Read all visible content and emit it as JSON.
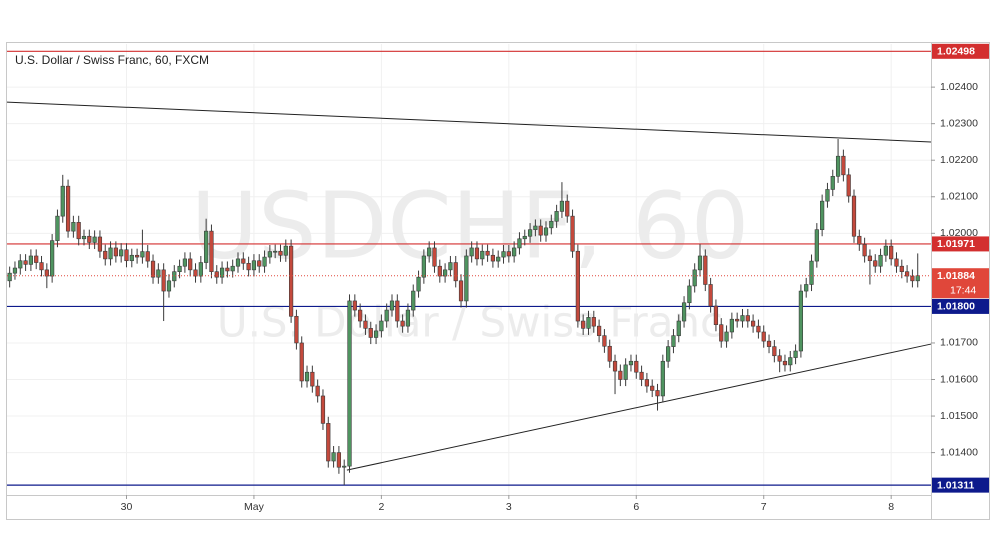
{
  "chart_data": {
    "type": "candlestick",
    "title": "U.S. Dollar / Swiss Franc, 60, FXCM",
    "watermark": "USDCHF, 60",
    "watermark_subtitle": "U.S. Dollar / Swiss Franc",
    "up_color": "#4f9460",
    "down_color": "#c4493c",
    "wick_color": "#3a3a3a",
    "grid": true,
    "xlim": [
      -0.5,
      173.5
    ],
    "ylim": [
      1.01284,
      1.02518
    ],
    "xticks": [
      {
        "value": 22,
        "label": "30"
      },
      {
        "value": 46,
        "label": "May"
      },
      {
        "value": 70,
        "label": "2"
      },
      {
        "value": 94,
        "label": "3"
      },
      {
        "value": 118,
        "label": "6"
      },
      {
        "value": 142,
        "label": "7"
      },
      {
        "value": 166,
        "label": "8"
      }
    ],
    "yticks": [
      {
        "value": 1.024,
        "label": "1.02400"
      },
      {
        "value": 1.023,
        "label": "1.02300"
      },
      {
        "value": 1.022,
        "label": "1.02200"
      },
      {
        "value": 1.021,
        "label": "1.02100"
      },
      {
        "value": 1.02,
        "label": "1.02000"
      },
      {
        "value": 1.017,
        "label": "1.01700"
      },
      {
        "value": 1.016,
        "label": "1.01600"
      },
      {
        "value": 1.015,
        "label": "1.01500"
      },
      {
        "value": 1.014,
        "label": "1.01400"
      }
    ],
    "levels": [
      {
        "value": 1.02498,
        "label": "1.02498",
        "color": "#d32f2f"
      },
      {
        "value": 1.01971,
        "label": "1.01971",
        "color": "#d32f2f"
      },
      {
        "value": 1.018,
        "label": "1.01800",
        "color": "#0d1a8c"
      },
      {
        "value": 1.01311,
        "label": "1.01311",
        "color": "#0d1a8c"
      }
    ],
    "last": {
      "value": 1.01884,
      "label": "1.01884",
      "countdown": "17:44",
      "color": "#e0473a"
    },
    "trendlines": [
      {
        "x": [
          -0.5,
          173.5
        ],
        "y": [
          1.02359,
          1.0225
        ],
        "color": "#222222"
      },
      {
        "x": [
          63.5,
          173.5
        ],
        "y": [
          1.01352,
          1.01697
        ],
        "color": "#222222"
      }
    ],
    "x": [
      0,
      1,
      2,
      3,
      4,
      5,
      6,
      7,
      8,
      9,
      10,
      11,
      12,
      13,
      14,
      15,
      16,
      17,
      18,
      19,
      20,
      21,
      22,
      23,
      24,
      25,
      26,
      27,
      28,
      29,
      30,
      31,
      32,
      33,
      34,
      35,
      36,
      37,
      38,
      39,
      40,
      41,
      42,
      43,
      44,
      45,
      46,
      47,
      48,
      49,
      50,
      51,
      52,
      53,
      54,
      55,
      56,
      57,
      58,
      59,
      60,
      61,
      62,
      63,
      64,
      65,
      66,
      67,
      68,
      69,
      70,
      71,
      72,
      73,
      74,
      75,
      76,
      77,
      78,
      79,
      80,
      81,
      82,
      83,
      84,
      85,
      86,
      87,
      88,
      89,
      90,
      91,
      92,
      93,
      94,
      95,
      96,
      97,
      98,
      99,
      100,
      101,
      102,
      103,
      104,
      105,
      106,
      107,
      108,
      109,
      110,
      111,
      112,
      113,
      114,
      115,
      116,
      117,
      118,
      119,
      120,
      121,
      122,
      123,
      124,
      125,
      126,
      127,
      128,
      129,
      130,
      131,
      132,
      133,
      134,
      135,
      136,
      137,
      138,
      139,
      140,
      141,
      142,
      143,
      144,
      145,
      146,
      147,
      148,
      149,
      150,
      151,
      152,
      153,
      154,
      155,
      156,
      157,
      158,
      159,
      160,
      161,
      162,
      163,
      164,
      165,
      166,
      167,
      168,
      169,
      170,
      171
    ],
    "open": [
      1.0187,
      1.01891,
      1.01905,
      1.01925,
      1.01915,
      1.01938,
      1.0192,
      1.019,
      1.01883,
      1.0198,
      1.02047,
      1.02129,
      1.02006,
      1.0203,
      1.01985,
      1.01992,
      1.01975,
      1.0199,
      1.01951,
      1.0193,
      1.0196,
      1.01938,
      1.01955,
      1.01925,
      1.0194,
      1.01935,
      1.0195,
      1.01924,
      1.0188,
      1.019,
      1.01842,
      1.0187,
      1.01895,
      1.0191,
      1.0193,
      1.019,
      1.01883,
      1.0192,
      1.02006,
      1.01895,
      1.0188,
      1.01905,
      1.01897,
      1.0191,
      1.0193,
      1.01918,
      1.019,
      1.01925,
      1.0191,
      1.01935,
      1.0195,
      1.01951,
      1.0194,
      1.01965,
      1.01773,
      1.017,
      1.01596,
      1.0162,
      1.01582,
      1.01555,
      1.0148,
      1.01377,
      1.014,
      1.0136,
      1.01363,
      1.01815,
      1.0179,
      1.0176,
      1.0174,
      1.01715,
      1.01733,
      1.0176,
      1.0179,
      1.01815,
      1.0176,
      1.01746,
      1.0179,
      1.01842,
      1.0188,
      1.01938,
      1.0196,
      1.0191,
      1.01883,
      1.019,
      1.0192,
      1.0187,
      1.01815,
      1.01938,
      1.0196,
      1.0193,
      1.01951,
      1.0194,
      1.01924,
      1.01935,
      1.0195,
      1.01938,
      1.0196,
      1.01985,
      1.01992,
      1.0201,
      1.0202,
      1.01995,
      1.02015,
      1.02033,
      1.0206,
      1.02088,
      1.02047,
      1.01951,
      1.0176,
      1.0174,
      1.0177,
      1.01746,
      1.0172,
      1.01691,
      1.0165,
      1.01623,
      1.016,
      1.0164,
      1.0165,
      1.0162,
      1.016,
      1.01582,
      1.0157,
      1.01555,
      1.0165,
      1.0169,
      1.0172,
      1.0176,
      1.0181,
      1.01856,
      1.019,
      1.01938,
      1.0186,
      1.01801,
      1.0175,
      1.01705,
      1.0173,
      1.01765,
      1.0176,
      1.01775,
      1.0176,
      1.01746,
      1.0173,
      1.01705,
      1.0169,
      1.01665,
      1.0165,
      1.0164,
      1.0166,
      1.01678,
      1.01842,
      1.0186,
      1.01924,
      1.0201,
      1.02088,
      1.0212,
      1.02156,
      1.02211,
      1.0216,
      1.02102,
      1.01992,
      1.0197,
      1.01938,
      1.01925,
      1.0191,
      1.0194,
      1.01965,
      1.0193,
      1.0191,
      1.01895,
      1.01883,
      1.0187
    ],
    "high": [
      1.01909,
      1.01923,
      1.01943,
      1.01943,
      1.01956,
      1.01956,
      1.01938,
      1.01918,
      1.01998,
      1.02065,
      1.0216,
      1.02147,
      1.02048,
      1.02048,
      1.0201,
      1.0201,
      1.02008,
      1.02008,
      1.01969,
      1.01978,
      1.01978,
      1.01973,
      1.01973,
      1.01958,
      1.01958,
      1.0201,
      1.01968,
      1.01942,
      1.01918,
      1.01918,
      1.01888,
      1.01913,
      1.01928,
      1.01948,
      1.01948,
      1.01918,
      1.01938,
      1.0204,
      1.02024,
      1.01913,
      1.01923,
      1.01923,
      1.01928,
      1.01948,
      1.01948,
      1.01936,
      1.01943,
      1.01943,
      1.01953,
      1.01968,
      1.01969,
      1.01969,
      1.01983,
      1.01983,
      1.01791,
      1.01718,
      1.01638,
      1.01638,
      1.016,
      1.01573,
      1.01498,
      1.01418,
      1.01418,
      1.01381,
      1.01833,
      1.01833,
      1.01808,
      1.01778,
      1.01758,
      1.01751,
      1.01778,
      1.01808,
      1.01833,
      1.01833,
      1.01778,
      1.01808,
      1.0186,
      1.01898,
      1.01956,
      1.01978,
      1.01978,
      1.01928,
      1.01918,
      1.01938,
      1.01938,
      1.01888,
      1.01956,
      1.01978,
      1.01978,
      1.01969,
      1.01969,
      1.01958,
      1.01953,
      1.01968,
      1.01968,
      1.01978,
      1.02003,
      1.0201,
      1.02028,
      1.02038,
      1.02038,
      1.02033,
      1.02051,
      1.02078,
      1.0214,
      1.02106,
      1.02065,
      1.01969,
      1.01778,
      1.01788,
      1.01788,
      1.01764,
      1.01738,
      1.01709,
      1.01668,
      1.01641,
      1.01658,
      1.01668,
      1.01668,
      1.01638,
      1.01618,
      1.016,
      1.01588,
      1.01668,
      1.01708,
      1.01738,
      1.01778,
      1.01828,
      1.01874,
      1.01918,
      1.0197,
      1.01956,
      1.01878,
      1.01819,
      1.01768,
      1.01748,
      1.01783,
      1.01783,
      1.01793,
      1.01793,
      1.01778,
      1.01764,
      1.01748,
      1.01723,
      1.01708,
      1.01683,
      1.01668,
      1.01678,
      1.01696,
      1.0186,
      1.01878,
      1.01942,
      1.02028,
      1.02106,
      1.02138,
      1.02174,
      1.02258,
      1.02229,
      1.02178,
      1.0212,
      1.0201,
      1.01988,
      1.01956,
      1.01943,
      1.01958,
      1.01983,
      1.01983,
      1.01948,
      1.01928,
      1.01913,
      1.01901,
      1.01945
    ],
    "low": [
      1.01852,
      1.01873,
      1.01887,
      1.01897,
      1.01897,
      1.01902,
      1.01882,
      1.0185,
      1.01865,
      1.01962,
      1.02029,
      1.01988,
      1.01988,
      1.01967,
      1.01967,
      1.01957,
      1.01957,
      1.01933,
      1.01912,
      1.01912,
      1.0192,
      1.0192,
      1.01907,
      1.01907,
      1.01917,
      1.01917,
      1.01906,
      1.01862,
      1.01862,
      1.0176,
      1.01824,
      1.01852,
      1.01877,
      1.01892,
      1.01882,
      1.01865,
      1.01865,
      1.01902,
      1.01877,
      1.01862,
      1.01862,
      1.01879,
      1.01879,
      1.01892,
      1.019,
      1.01882,
      1.01882,
      1.01892,
      1.01892,
      1.01917,
      1.01932,
      1.01922,
      1.01922,
      1.01755,
      1.01682,
      1.01578,
      1.01578,
      1.01564,
      1.01537,
      1.01462,
      1.01359,
      1.01359,
      1.01342,
      1.01311,
      1.01345,
      1.01772,
      1.01742,
      1.01722,
      1.01697,
      1.01697,
      1.01715,
      1.01742,
      1.01772,
      1.01742,
      1.01728,
      1.01728,
      1.01772,
      1.01824,
      1.01862,
      1.0192,
      1.01892,
      1.01865,
      1.01865,
      1.01882,
      1.01852,
      1.01797,
      1.01797,
      1.0192,
      1.01912,
      1.01912,
      1.01922,
      1.01906,
      1.01906,
      1.01917,
      1.0192,
      1.0192,
      1.01942,
      1.01967,
      1.01974,
      1.01992,
      1.01977,
      1.01977,
      1.01997,
      1.02015,
      1.02042,
      1.02029,
      1.01933,
      1.01742,
      1.01722,
      1.01722,
      1.01728,
      1.01702,
      1.01673,
      1.01632,
      1.0156,
      1.01582,
      1.01582,
      1.01622,
      1.01602,
      1.01582,
      1.01564,
      1.01552,
      1.01515,
      1.01537,
      1.01632,
      1.01672,
      1.01702,
      1.01742,
      1.01792,
      1.01838,
      1.01882,
      1.01842,
      1.01783,
      1.01732,
      1.01687,
      1.01687,
      1.01712,
      1.01742,
      1.01742,
      1.01742,
      1.01728,
      1.01712,
      1.01687,
      1.01672,
      1.01647,
      1.0162,
      1.01622,
      1.01622,
      1.01642,
      1.0166,
      1.01824,
      1.01842,
      1.01906,
      1.01992,
      1.0207,
      1.02102,
      1.02138,
      1.02142,
      1.02084,
      1.01974,
      1.01952,
      1.0192,
      1.0186,
      1.01892,
      1.01892,
      1.01922,
      1.01912,
      1.01892,
      1.01877,
      1.01865,
      1.01852,
      1.01852
    ],
    "close": [
      1.01891,
      1.01905,
      1.01925,
      1.01915,
      1.01938,
      1.0192,
      1.019,
      1.01883,
      1.0198,
      1.02047,
      1.02129,
      1.02006,
      1.0203,
      1.01985,
      1.01992,
      1.01975,
      1.0199,
      1.01951,
      1.0193,
      1.0196,
      1.01938,
      1.01955,
      1.01925,
      1.0194,
      1.01935,
      1.0195,
      1.01924,
      1.0188,
      1.019,
      1.01842,
      1.0187,
      1.01895,
      1.0191,
      1.0193,
      1.019,
      1.01883,
      1.0192,
      1.02006,
      1.01895,
      1.0188,
      1.01905,
      1.01897,
      1.0191,
      1.0193,
      1.01918,
      1.019,
      1.01925,
      1.0191,
      1.01935,
      1.0195,
      1.01951,
      1.0194,
      1.01965,
      1.01773,
      1.017,
      1.01596,
      1.0162,
      1.01582,
      1.01555,
      1.0148,
      1.01377,
      1.014,
      1.0136,
      1.01363,
      1.01815,
      1.0179,
      1.0176,
      1.0174,
      1.01715,
      1.01733,
      1.0176,
      1.0179,
      1.01815,
      1.0176,
      1.01746,
      1.0179,
      1.01842,
      1.0188,
      1.01938,
      1.0196,
      1.0191,
      1.01883,
      1.019,
      1.0192,
      1.0187,
      1.01815,
      1.01938,
      1.0196,
      1.0193,
      1.01951,
      1.0194,
      1.01924,
      1.01935,
      1.0195,
      1.01938,
      1.0196,
      1.01985,
      1.01992,
      1.0201,
      1.0202,
      1.01995,
      1.02015,
      1.02033,
      1.0206,
      1.02088,
      1.02047,
      1.01951,
      1.0176,
      1.0174,
      1.0177,
      1.01746,
      1.0172,
      1.01691,
      1.0165,
      1.01623,
      1.016,
      1.0164,
      1.0165,
      1.0162,
      1.016,
      1.01582,
      1.0157,
      1.01555,
      1.0165,
      1.0169,
      1.0172,
      1.0176,
      1.0181,
      1.01856,
      1.019,
      1.01938,
      1.0186,
      1.01801,
      1.0175,
      1.01705,
      1.0173,
      1.01765,
      1.0176,
      1.01775,
      1.0176,
      1.01746,
      1.0173,
      1.01705,
      1.0169,
      1.01665,
      1.0165,
      1.0164,
      1.0166,
      1.01678,
      1.01842,
      1.0186,
      1.01924,
      1.0201,
      1.02088,
      1.0212,
      1.02156,
      1.02211,
      1.0216,
      1.02102,
      1.01992,
      1.0197,
      1.01938,
      1.01925,
      1.0191,
      1.0194,
      1.01965,
      1.0193,
      1.0191,
      1.01895,
      1.01883,
      1.0187,
      1.01884
    ]
  }
}
